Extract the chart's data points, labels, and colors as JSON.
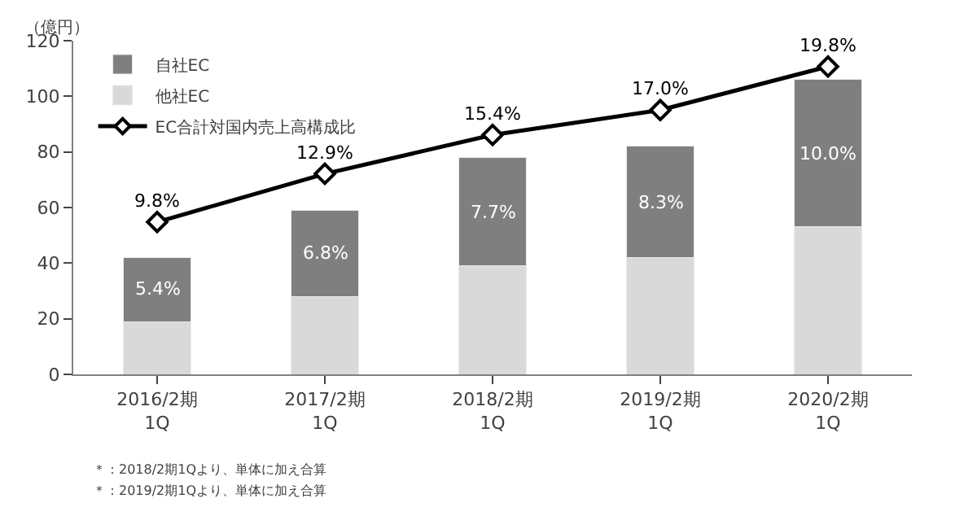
{
  "chart_data": {
    "type": "bar",
    "stacked": true,
    "ylabel": "（億円）",
    "categories": [
      "2016/2期\n1Q",
      "2017/2期\n1Q",
      "2018/2期\n1Q",
      "2019/2期\n1Q",
      "2020/2期\n1Q"
    ],
    "series": [
      {
        "name": "他社EC",
        "color": "#d9d9d9",
        "values": [
          19,
          28,
          39,
          42,
          53
        ]
      },
      {
        "name": "自社EC",
        "color": "#7f7f7f",
        "values": [
          23,
          31,
          39,
          40,
          53
        ]
      },
      {
        "name": "EC合計対国内売上高構成比",
        "type": "line",
        "axis": "y2",
        "color": "#000000",
        "marker": "diamond",
        "values": [
          9.8,
          12.9,
          15.4,
          17.0,
          19.8
        ],
        "value_labels": [
          "9.8%",
          "12.9%",
          "15.4%",
          "17.0%",
          "19.8%"
        ]
      }
    ],
    "ylim": [
      0,
      120
    ],
    "yticks": [
      0,
      20,
      40,
      60,
      80,
      100,
      120
    ],
    "legend": "top left",
    "annotations": [
      "5.4%",
      "6.8%",
      "7.7%",
      "8.3%",
      "10.0%",
      "＊：2018/2期1Qより、単体に加え合算",
      "＊：2019/2期1Qより、単体に加え合算"
    ]
  }
}
